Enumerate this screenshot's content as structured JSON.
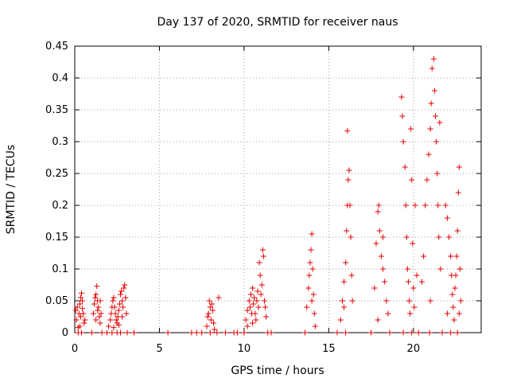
{
  "chart_data": {
    "type": "scatter",
    "title": "Day 137 of 2020, SRMTID for receiver naus",
    "xlabel": "GPS time / hours",
    "ylabel": "SRMTID / TECUs",
    "xlim": [
      0,
      24
    ],
    "ylim": [
      0,
      0.45
    ],
    "xticks": [
      0,
      5,
      10,
      15,
      20
    ],
    "yticks": [
      0,
      0.05,
      0.1,
      0.15,
      0.2,
      0.25,
      0.3,
      0.35,
      0.4,
      0.45
    ],
    "xtick_labels": [
      "0",
      "5",
      "10",
      "15",
      "20"
    ],
    "ytick_labels": [
      "0",
      "0.05",
      "0.1",
      "0.15",
      "0.2",
      "0.25",
      "0.3",
      "0.35",
      "0.4",
      "0.45"
    ],
    "grid": true,
    "marker": "+",
    "color": "#e60000",
    "series": [
      {
        "name": "naus",
        "points": [
          [
            0.05,
            0.035
          ],
          [
            0.1,
            0.02
          ],
          [
            0.15,
            0.04
          ],
          [
            0.2,
            0.008
          ],
          [
            0.25,
            0.03
          ],
          [
            0.3,
            0.045
          ],
          [
            0.35,
            0.055
          ],
          [
            0.4,
            0.062
          ],
          [
            0.45,
            0.05
          ],
          [
            0.5,
            0.03
          ],
          [
            0.55,
            0.015
          ],
          [
            0.3,
            0.01
          ],
          [
            0.2,
            0.0
          ],
          [
            0.4,
            0.0
          ],
          [
            0.6,
            0.02
          ],
          [
            0.35,
            0.025
          ],
          [
            0.45,
            0.038
          ],
          [
            1.0,
            0.0
          ],
          [
            1.1,
            0.03
          ],
          [
            1.15,
            0.045
          ],
          [
            1.2,
            0.055
          ],
          [
            1.25,
            0.06
          ],
          [
            1.3,
            0.073
          ],
          [
            1.35,
            0.05
          ],
          [
            1.4,
            0.04
          ],
          [
            1.45,
            0.025
          ],
          [
            1.5,
            0.015
          ],
          [
            1.55,
            0.03
          ],
          [
            1.6,
            0.0
          ],
          [
            1.25,
            0.02
          ],
          [
            1.35,
            0.035
          ],
          [
            1.5,
            0.05
          ],
          [
            1.9,
            0.0
          ],
          [
            2.0,
            0.01
          ],
          [
            2.1,
            0.02
          ],
          [
            2.15,
            0.03
          ],
          [
            2.2,
            0.04
          ],
          [
            2.25,
            0.05
          ],
          [
            2.3,
            0.055
          ],
          [
            2.35,
            0.04
          ],
          [
            2.4,
            0.03
          ],
          [
            2.45,
            0.02
          ],
          [
            2.5,
            0.015
          ],
          [
            2.55,
            0.025
          ],
          [
            2.6,
            0.035
          ],
          [
            2.65,
            0.045
          ],
          [
            2.7,
            0.06
          ],
          [
            2.75,
            0.065
          ],
          [
            2.8,
            0.05
          ],
          [
            2.85,
            0.04
          ],
          [
            2.9,
            0.07
          ],
          [
            2.95,
            0.075
          ],
          [
            3.0,
            0.055
          ],
          [
            3.05,
            0.03
          ],
          [
            2.5,
            0.0
          ],
          [
            2.7,
            0.0
          ],
          [
            3.1,
            0.0
          ],
          [
            2.3,
            0.008
          ],
          [
            2.6,
            0.012
          ],
          [
            2.8,
            0.025
          ],
          [
            2.2,
            0.0
          ],
          [
            3.5,
            0.0
          ],
          [
            5.5,
            0.0
          ],
          [
            6.9,
            0.0
          ],
          [
            7.2,
            0.0
          ],
          [
            7.5,
            0.0
          ],
          [
            7.8,
            0.01
          ],
          [
            7.9,
            0.03
          ],
          [
            7.95,
            0.05
          ],
          [
            8.0,
            0.04
          ],
          [
            8.05,
            0.02
          ],
          [
            8.1,
            0.045
          ],
          [
            8.15,
            0.035
          ],
          [
            8.2,
            0.015
          ],
          [
            8.25,
            0.005
          ],
          [
            8.0,
            0.0
          ],
          [
            8.4,
            0.0
          ],
          [
            8.5,
            0.055
          ],
          [
            7.85,
            0.025
          ],
          [
            8.9,
            0.0
          ],
          [
            9.4,
            0.0
          ],
          [
            9.6,
            0.0
          ],
          [
            10.0,
            0.0
          ],
          [
            10.1,
            0.02
          ],
          [
            10.2,
            0.035
          ],
          [
            10.3,
            0.05
          ],
          [
            10.35,
            0.04
          ],
          [
            10.4,
            0.06
          ],
          [
            10.45,
            0.03
          ],
          [
            10.5,
            0.07
          ],
          [
            10.55,
            0.045
          ],
          [
            10.6,
            0.055
          ],
          [
            10.65,
            0.03
          ],
          [
            10.7,
            0.02
          ],
          [
            10.75,
            0.05
          ],
          [
            10.8,
            0.065
          ],
          [
            10.85,
            0.04
          ],
          [
            10.9,
            0.11
          ],
          [
            10.95,
            0.09
          ],
          [
            11.0,
            0.06
          ],
          [
            11.05,
            0.075
          ],
          [
            11.1,
            0.13
          ],
          [
            11.15,
            0.12
          ],
          [
            11.2,
            0.05
          ],
          [
            11.25,
            0.04
          ],
          [
            11.3,
            0.025
          ],
          [
            10.2,
            0.01
          ],
          [
            10.5,
            0.015
          ],
          [
            11.4,
            0.0
          ],
          [
            11.6,
            0.0
          ],
          [
            13.6,
            0.0
          ],
          [
            13.7,
            0.04
          ],
          [
            13.8,
            0.07
          ],
          [
            13.85,
            0.09
          ],
          [
            13.9,
            0.11
          ],
          [
            13.95,
            0.13
          ],
          [
            14.0,
            0.155
          ],
          [
            14.05,
            0.1
          ],
          [
            14.1,
            0.06
          ],
          [
            14.15,
            0.03
          ],
          [
            14.2,
            0.01
          ],
          [
            14.0,
            0.05
          ],
          [
            15.5,
            0.0
          ],
          [
            15.7,
            0.02
          ],
          [
            15.8,
            0.05
          ],
          [
            15.9,
            0.08
          ],
          [
            16.0,
            0.11
          ],
          [
            16.05,
            0.16
          ],
          [
            16.1,
            0.2
          ],
          [
            16.15,
            0.24
          ],
          [
            16.2,
            0.255
          ],
          [
            16.25,
            0.2
          ],
          [
            16.3,
            0.15
          ],
          [
            16.35,
            0.09
          ],
          [
            16.4,
            0.05
          ],
          [
            16.1,
            0.317
          ],
          [
            15.9,
            0.04
          ],
          [
            16.0,
            0.0
          ],
          [
            17.5,
            0.0
          ],
          [
            17.7,
            0.07
          ],
          [
            17.8,
            0.14
          ],
          [
            17.9,
            0.19
          ],
          [
            17.95,
            0.2
          ],
          [
            18.0,
            0.16
          ],
          [
            18.1,
            0.12
          ],
          [
            18.2,
            0.1
          ],
          [
            18.3,
            0.08
          ],
          [
            18.4,
            0.05
          ],
          [
            18.5,
            0.03
          ],
          [
            17.9,
            0.02
          ],
          [
            18.2,
            0.15
          ],
          [
            18.6,
            0.0
          ],
          [
            19.3,
            0.37
          ],
          [
            19.35,
            0.34
          ],
          [
            19.4,
            0.3
          ],
          [
            19.5,
            0.26
          ],
          [
            19.55,
            0.2
          ],
          [
            19.6,
            0.15
          ],
          [
            19.65,
            0.1
          ],
          [
            19.7,
            0.08
          ],
          [
            19.75,
            0.05
          ],
          [
            19.8,
            0.03
          ],
          [
            19.85,
            0.32
          ],
          [
            19.9,
            0.24
          ],
          [
            19.95,
            0.14
          ],
          [
            20.0,
            0.07
          ],
          [
            20.05,
            0.04
          ],
          [
            20.1,
            0.2
          ],
          [
            19.4,
            0.0
          ],
          [
            19.9,
            0.0
          ],
          [
            20.3,
            0.0
          ],
          [
            20.2,
            0.09
          ],
          [
            20.5,
            0.08
          ],
          [
            20.6,
            0.12
          ],
          [
            20.7,
            0.2
          ],
          [
            20.8,
            0.24
          ],
          [
            20.9,
            0.28
          ],
          [
            21.0,
            0.32
          ],
          [
            21.05,
            0.36
          ],
          [
            21.1,
            0.415
          ],
          [
            21.2,
            0.43
          ],
          [
            21.25,
            0.38
          ],
          [
            21.3,
            0.34
          ],
          [
            21.35,
            0.3
          ],
          [
            21.4,
            0.25
          ],
          [
            21.45,
            0.2
          ],
          [
            21.5,
            0.15
          ],
          [
            21.55,
            0.33
          ],
          [
            21.6,
            0.1
          ],
          [
            21.0,
            0.05
          ],
          [
            20.95,
            0.0
          ],
          [
            21.7,
            0.0
          ],
          [
            21.9,
            0.2
          ],
          [
            22.0,
            0.18
          ],
          [
            22.1,
            0.15
          ],
          [
            22.2,
            0.12
          ],
          [
            22.25,
            0.09
          ],
          [
            22.3,
            0.06
          ],
          [
            22.35,
            0.04
          ],
          [
            22.4,
            0.02
          ],
          [
            22.5,
            0.09
          ],
          [
            22.55,
            0.12
          ],
          [
            22.6,
            0.16
          ],
          [
            22.65,
            0.22
          ],
          [
            22.7,
            0.26
          ],
          [
            22.75,
            0.1
          ],
          [
            22.8,
            0.05
          ],
          [
            22.2,
            0.0
          ],
          [
            22.6,
            0.0
          ],
          [
            22.45,
            0.07
          ],
          [
            22.0,
            0.03
          ],
          [
            22.7,
            0.03
          ]
        ]
      }
    ]
  }
}
